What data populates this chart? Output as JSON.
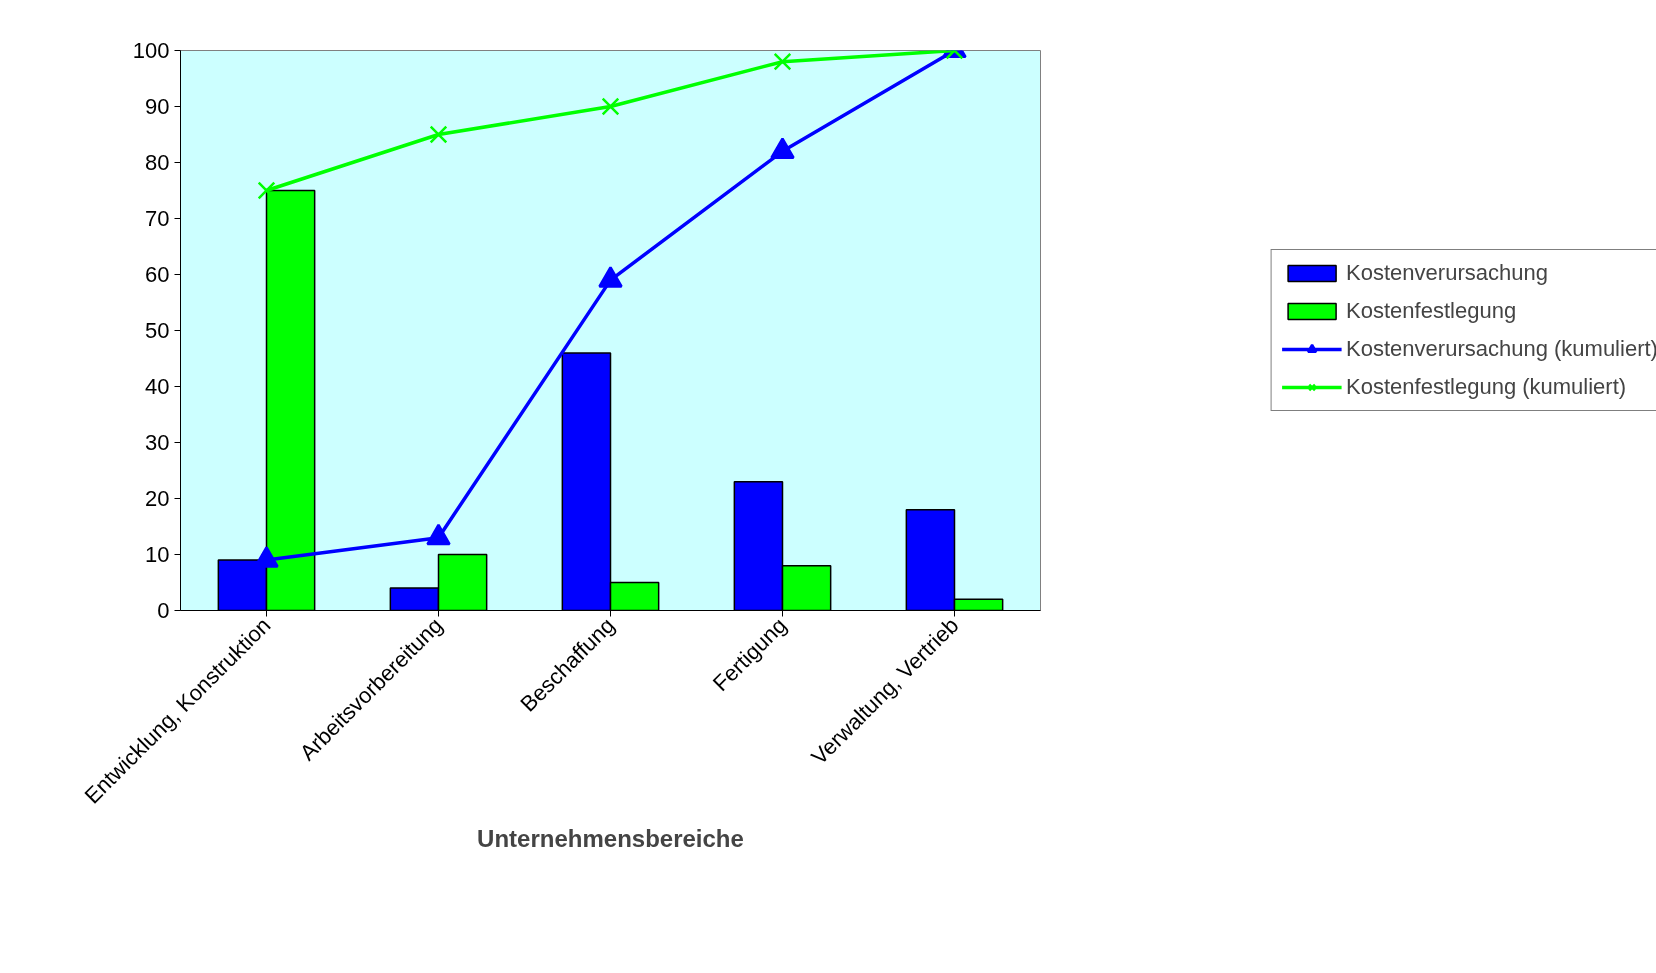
{
  "chart_data": {
    "type": "bar",
    "xlabel": "Unternehmensbereiche",
    "categories": [
      "Entwicklung, Konstruktion",
      "Arbeitsvorbereitung",
      "Beschaffung",
      "Fertigung",
      "Verwaltung, Vertrieb"
    ],
    "series": [
      {
        "name": "Kostenverursachung",
        "color": "#0000ff",
        "values": [
          9,
          4,
          46,
          23,
          18
        ]
      },
      {
        "name": "Kostenfestlegung",
        "color": "#00ff00",
        "values": [
          75,
          10,
          5,
          8,
          2
        ]
      },
      {
        "name": "Kostenverursachung (kumuliert)",
        "type": "line",
        "marker": "triangle",
        "color": "#0000ff",
        "values": [
          9,
          13,
          59,
          82,
          100
        ]
      },
      {
        "name": "Kostenfestlegung (kumuliert)",
        "type": "line",
        "marker": "cross",
        "color": "#00ff00",
        "values": [
          75,
          85,
          90,
          98,
          100
        ]
      }
    ],
    "ylim": [
      0,
      100
    ],
    "yticks": [
      0,
      10,
      20,
      30,
      40,
      50,
      60,
      70,
      80,
      90,
      100
    ],
    "grid": false,
    "legend": "right"
  }
}
